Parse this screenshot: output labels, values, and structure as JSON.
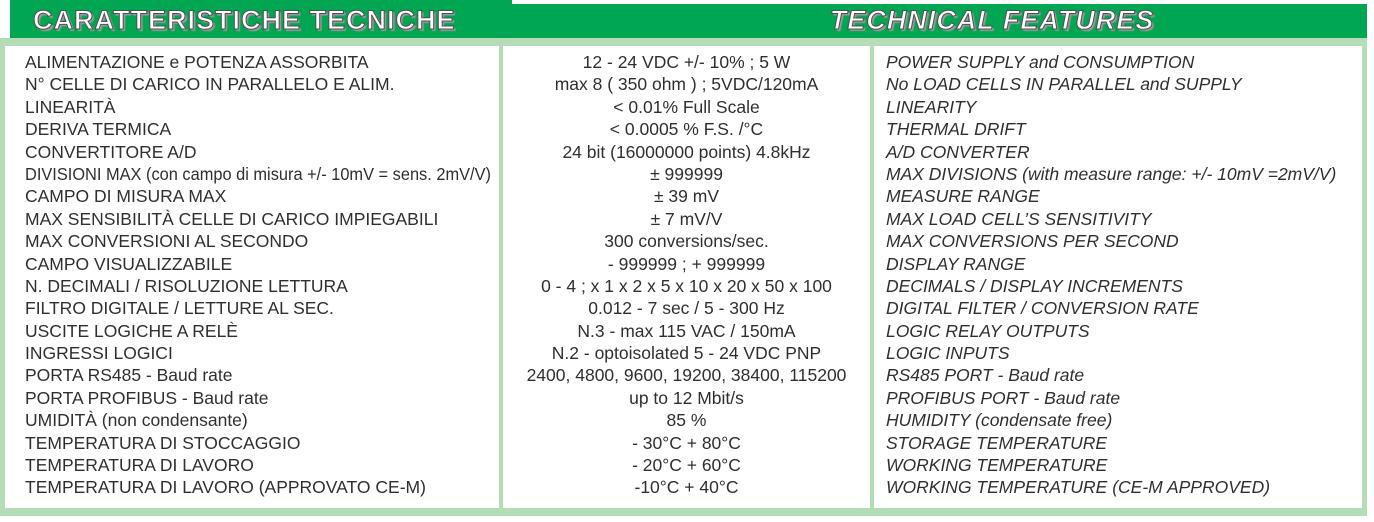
{
  "header": {
    "title_it": "CARATTERISTICHE TECNICHE",
    "title_en": "TECHNICAL FEATURES"
  },
  "colors": {
    "accent_green": "#00a651",
    "light_green": "#b4dcb6",
    "text": "#2f2f2f"
  },
  "table": {
    "rows": [
      {
        "it": "ALIMENTAZIONE e POTENZA ASSORBITA",
        "value": "12 - 24 VDC +/- 10% ; 5 W",
        "en": "POWER SUPPLY and CONSUMPTION"
      },
      {
        "it": "N° CELLE DI CARICO IN PARALLELO E ALIM.",
        "value": "max 8 ( 350 ohm ) ; 5VDC/120mA",
        "en": "No LOAD CELLS IN PARALLEL and SUPPLY"
      },
      {
        "it": "LINEARITÀ",
        "value": "< 0.01% Full Scale",
        "en": "LINEARITY"
      },
      {
        "it": "DERIVA TERMICA",
        "value": "< 0.0005 % F.S. /°C",
        "en": "THERMAL DRIFT"
      },
      {
        "it": "CONVERTITORE A/D",
        "value": "24 bit (16000000 points) 4.8kHz",
        "en": "A/D CONVERTER"
      },
      {
        "it": "DIVISIONI MAX (con campo di misura +/- 10mV = sens. 2mV/V)",
        "value": "± 999999",
        "en": "MAX DIVISIONS (with measure range: +/- 10mV =2mV/V)"
      },
      {
        "it": "CAMPO DI MISURA MAX",
        "value": "± 39 mV",
        "en": "MEASURE RANGE"
      },
      {
        "it": "MAX SENSIBILITÀ CELLE DI CARICO IMPIEGABILI",
        "value": "± 7 mV/V",
        "en": "MAX LOAD CELL’S SENSITIVITY"
      },
      {
        "it": "MAX CONVERSIONI AL SECONDO",
        "value": "300 conversions/sec.",
        "en": "MAX CONVERSIONS PER SECOND"
      },
      {
        "it": "CAMPO VISUALIZZABILE",
        "value": "- 999999 ; + 999999",
        "en": "DISPLAY RANGE"
      },
      {
        "it": "N. DECIMALI / RISOLUZIONE LETTURA",
        "value": "0 - 4 ; x 1 x 2 x 5 x 10 x 20 x 50 x 100",
        "en": "DECIMALS / DISPLAY INCREMENTS"
      },
      {
        "it": "FILTRO DIGITALE / LETTURE AL SEC.",
        "value": "0.012 - 7 sec / 5 - 300 Hz",
        "en": "DIGITAL FILTER / CONVERSION RATE"
      },
      {
        "it": "USCITE LOGICHE A RELÈ",
        "value": "N.3 - max 115 VAC / 150mA",
        "en": "LOGIC RELAY OUTPUTS"
      },
      {
        "it": "INGRESSI LOGICI",
        "value": "N.2 - optoisolated 5 - 24 VDC PNP",
        "en": "LOGIC INPUTS"
      },
      {
        "it": "PORTA RS485 - Baud rate",
        "value": "2400, 4800, 9600, 19200, 38400, 115200",
        "en": "RS485 PORT - Baud rate"
      },
      {
        "it": "PORTA PROFIBUS - Baud rate",
        "value": "up to 12 Mbit/s",
        "en": "PROFIBUS PORT - Baud rate"
      },
      {
        "it": "UMIDITÀ (non condensante)",
        "value": "85 %",
        "en": "HUMIDITY (condensate free)"
      },
      {
        "it": "TEMPERATURA DI STOCCAGGIO",
        "value": "- 30°C + 80°C",
        "en": "STORAGE TEMPERATURE"
      },
      {
        "it": "TEMPERATURA DI LAVORO",
        "value": "- 20°C + 60°C",
        "en": "WORKING TEMPERATURE"
      },
      {
        "it": "TEMPERATURA DI LAVORO (APPROVATO CE-M)",
        "value": "-10°C + 40°C",
        "en": "WORKING TEMPERATURE (CE-M APPROVED)"
      }
    ]
  }
}
